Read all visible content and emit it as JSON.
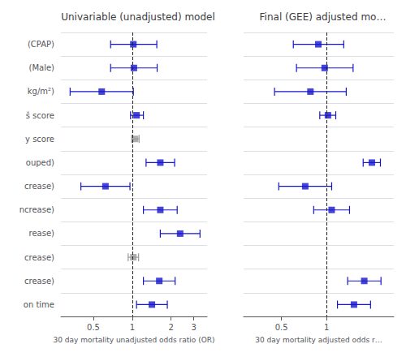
{
  "chart_data": [
    {
      "type": "forest",
      "title": "Univariable (unadjusted) model",
      "xlabel": "30 day mortality unadjusted odds ratio (OR)",
      "categories": [
        "(CPAP)",
        "(Male)",
        "kg/m²)",
        "š score",
        "y score",
        "ouped)",
        "crease)",
        "ncrease)",
        "rease)",
        "crease)",
        "crease)",
        "on time"
      ],
      "values": [
        1.02,
        1.03,
        0.58,
        1.08,
        1.05,
        1.65,
        0.62,
        1.65,
        2.35,
        1.02,
        1.62,
        1.42
      ],
      "lo": [
        0.68,
        0.68,
        0.33,
        0.97,
        0.99,
        1.28,
        0.4,
        1.22,
        1.65,
        0.93,
        1.22,
        1.08
      ],
      "hi": [
        1.55,
        1.56,
        1.02,
        1.22,
        1.13,
        2.13,
        0.96,
        2.23,
        3.35,
        1.12,
        2.15,
        1.87
      ],
      "colors": [
        "#1515cc",
        "#1515cc",
        "#1515cc",
        "#1515cc",
        "#999999",
        "#1515cc",
        "#1515cc",
        "#1515cc",
        "#1515cc",
        "#999999",
        "#1515cc",
        "#1515cc"
      ],
      "marker": "square",
      "xlim": [
        0.28,
        3.8
      ],
      "xticks": [
        0.5,
        1,
        2,
        3
      ],
      "log": "x",
      "grid": true,
      "reference_line": 1
    },
    {
      "type": "forest",
      "title": "Final (GEE) adjusted mo…",
      "xlabel": "30 day mortality adjusted odds r…",
      "values": [
        0.88,
        0.97,
        0.78,
        1.02,
        null,
        2.0,
        0.72,
        1.08,
        null,
        null,
        1.78,
        1.52
      ],
      "lo": [
        0.6,
        0.63,
        0.45,
        0.9,
        null,
        1.75,
        0.48,
        0.82,
        null,
        null,
        1.38,
        1.18
      ],
      "hi": [
        1.3,
        1.5,
        1.35,
        1.15,
        null,
        2.28,
        1.08,
        1.42,
        null,
        null,
        2.3,
        1.96
      ],
      "colors": [
        "#1515cc",
        "#1515cc",
        "#1515cc",
        "#1515cc",
        null,
        "#1515cc",
        "#1515cc",
        "#1515cc",
        null,
        null,
        "#1515cc",
        "#1515cc"
      ],
      "marker": "square",
      "xlim": [
        0.28,
        2.8
      ],
      "xticks": [
        0.5,
        1
      ],
      "log": "x",
      "grid": true,
      "reference_line": 1,
      "tick_labels": "x"
    }
  ]
}
